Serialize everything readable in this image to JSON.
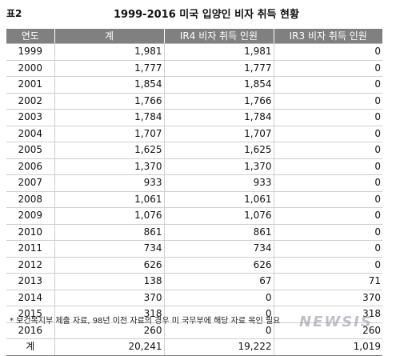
{
  "header": {
    "label": "표2",
    "title": "1999-2016 미국 입양인 비자 취득 현황"
  },
  "table": {
    "columns": [
      "연도",
      "계",
      "IR4 비자 취득 인원",
      "IR3 비자 취득 인원"
    ],
    "rows": [
      [
        "1999",
        "1,981",
        "1,981",
        "0"
      ],
      [
        "2000",
        "1,777",
        "1,777",
        "0"
      ],
      [
        "2001",
        "1,854",
        "1,854",
        "0"
      ],
      [
        "2002",
        "1,766",
        "1,766",
        "0"
      ],
      [
        "2003",
        "1,784",
        "1,784",
        "0"
      ],
      [
        "2004",
        "1,707",
        "1,707",
        "0"
      ],
      [
        "2005",
        "1,625",
        "1,625",
        "0"
      ],
      [
        "2006",
        "1,370",
        "1,370",
        "0"
      ],
      [
        "2007",
        "933",
        "933",
        "0"
      ],
      [
        "2008",
        "1,061",
        "1,061",
        "0"
      ],
      [
        "2009",
        "1,076",
        "1,076",
        "0"
      ],
      [
        "2010",
        "861",
        "861",
        "0"
      ],
      [
        "2011",
        "734",
        "734",
        "0"
      ],
      [
        "2012",
        "626",
        "626",
        "0"
      ],
      [
        "2013",
        "138",
        "67",
        "71"
      ],
      [
        "2014",
        "370",
        "0",
        "370"
      ],
      [
        "2015",
        "318",
        "0",
        "318"
      ],
      [
        "2016",
        "260",
        "0",
        "260"
      ]
    ],
    "total": [
      "계",
      "20,241",
      "19,222",
      "1,019"
    ]
  },
  "footnote": "* 보건복지부 제출 자료, 98년 이전 자료의 경우 미 국무부에 해당 자료 목인 필요",
  "watermark": "NEWSIS"
}
